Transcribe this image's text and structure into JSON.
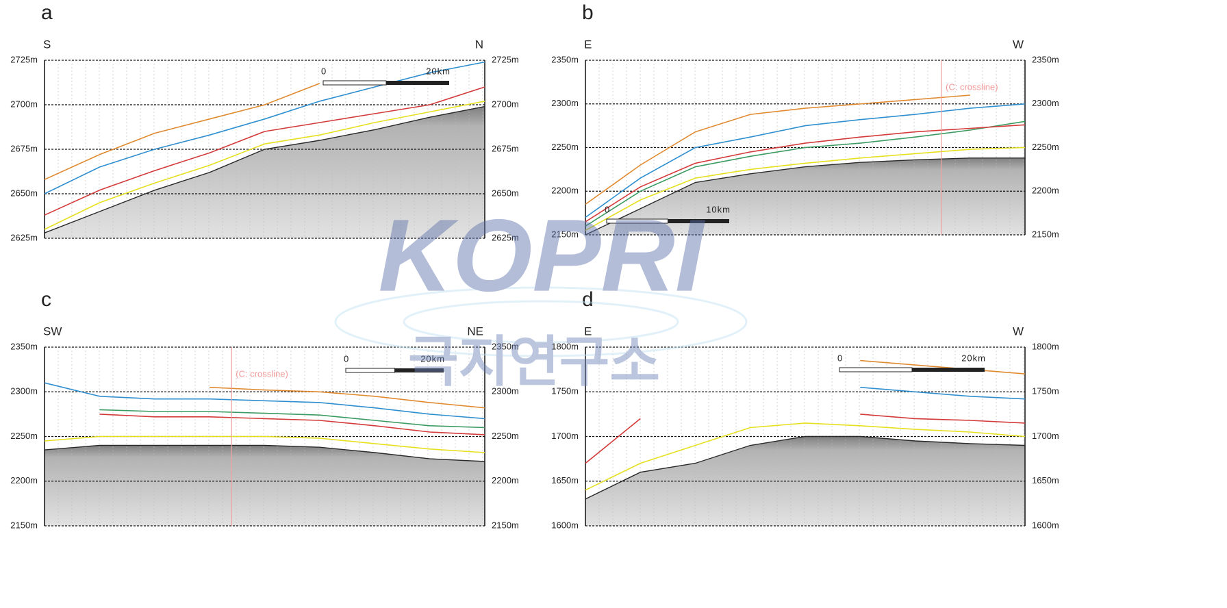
{
  "panels": [
    {
      "label": "a",
      "left": "S",
      "right": "N",
      "ylim": [
        2625,
        2725
      ],
      "yticks": [
        {
          "value": 2625,
          "label": "2625m"
        },
        {
          "value": 2650,
          "label": "2650m"
        },
        {
          "value": 2675,
          "label": "2675m"
        },
        {
          "value": 2700,
          "label": "2700m"
        },
        {
          "value": 2725,
          "label": "2725m"
        }
      ],
      "scale": [
        "0",
        "20km"
      ],
      "horizons": [
        {
          "color": "#2a2a2a",
          "depths": [
            2628,
            2640,
            2652,
            2662,
            2675,
            2680,
            2686,
            2693,
            2699
          ]
        },
        {
          "color": "#e6e020",
          "depths": [
            2630,
            2645,
            2656,
            2666,
            2678,
            2683,
            2690,
            2696,
            2702
          ]
        },
        {
          "color": "#d43a3a",
          "depths": [
            2638,
            2652,
            2663,
            2673,
            2685,
            2690,
            2695,
            2700,
            2710
          ]
        },
        {
          "color": "#2f8fd0",
          "depths": [
            2650,
            2665,
            2675,
            2683,
            2692,
            2702,
            2710,
            2718,
            2724
          ]
        },
        {
          "color": "#e08a30",
          "depths": [
            2658,
            2672,
            2684,
            2692,
            2700,
            2712,
            null,
            null,
            null
          ]
        }
      ]
    },
    {
      "label": "b",
      "left": "E",
      "right": "W",
      "ylim": [
        2150,
        2350
      ],
      "yticks": [
        {
          "value": 2150,
          "label": "2150m"
        },
        {
          "value": 2200,
          "label": "2200m"
        },
        {
          "value": 2250,
          "label": "2250m"
        },
        {
          "value": 2300,
          "label": "2300m"
        },
        {
          "value": 2350,
          "label": "2350m"
        }
      ],
      "scale": [
        "0",
        "10km"
      ],
      "crossline": "(C: crossline)",
      "horizons": [
        {
          "color": "#2a2a2a",
          "depths": [
            2150,
            2180,
            2210,
            2220,
            2228,
            2233,
            2236,
            2238,
            2238
          ]
        },
        {
          "color": "#e6e020",
          "depths": [
            2155,
            2190,
            2215,
            2225,
            2232,
            2238,
            2243,
            2248,
            2250
          ]
        },
        {
          "color": "#3a9a60",
          "depths": [
            2160,
            2200,
            2228,
            2240,
            2250,
            2255,
            2262,
            2270,
            2280
          ]
        },
        {
          "color": "#d43a3a",
          "depths": [
            2165,
            2205,
            2232,
            2245,
            2255,
            2262,
            2268,
            2272,
            2276
          ]
        },
        {
          "color": "#2f8fd0",
          "depths": [
            2170,
            2215,
            2250,
            2262,
            2275,
            2282,
            2288,
            2295,
            2300
          ]
        },
        {
          "color": "#e08a30",
          "depths": [
            2185,
            2230,
            2268,
            2288,
            2295,
            2300,
            2305,
            2310,
            null
          ]
        }
      ]
    },
    {
      "label": "c",
      "left": "SW",
      "right": "NE",
      "ylim": [
        2150,
        2350
      ],
      "yticks": [
        {
          "value": 2150,
          "label": "2150m"
        },
        {
          "value": 2200,
          "label": "2200m"
        },
        {
          "value": 2250,
          "label": "2250m"
        },
        {
          "value": 2300,
          "label": "2300m"
        },
        {
          "value": 2350,
          "label": "2350m"
        }
      ],
      "scale": [
        "0",
        "20km"
      ],
      "crossline": "(C: crossline)",
      "horizons": [
        {
          "color": "#2a2a2a",
          "depths": [
            2235,
            2240,
            2240,
            2240,
            2240,
            2238,
            2232,
            2225,
            2222
          ]
        },
        {
          "color": "#e6e020",
          "depths": [
            2245,
            2250,
            2250,
            2250,
            2250,
            2248,
            2242,
            2236,
            2232
          ]
        },
        {
          "color": "#d43a3a",
          "depths": [
            null,
            2275,
            2272,
            2272,
            2270,
            2268,
            2262,
            2255,
            2252
          ]
        },
        {
          "color": "#3a9a60",
          "depths": [
            null,
            2280,
            2278,
            2278,
            2276,
            2274,
            2268,
            2262,
            2260
          ]
        },
        {
          "color": "#2f8fd0",
          "depths": [
            2310,
            2295,
            2292,
            2292,
            2290,
            2288,
            2282,
            2275,
            2270
          ]
        },
        {
          "color": "#e08a30",
          "depths": [
            null,
            null,
            null,
            2305,
            2302,
            2300,
            2295,
            2288,
            2282
          ]
        }
      ]
    },
    {
      "label": "d",
      "left": "E",
      "right": "W",
      "ylim": [
        1600,
        1800
      ],
      "yticks": [
        {
          "value": 1600,
          "label": "1600m"
        },
        {
          "value": 1650,
          "label": "1650m"
        },
        {
          "value": 1700,
          "label": "1700m"
        },
        {
          "value": 1750,
          "label": "1750m"
        },
        {
          "value": 1800,
          "label": "1800m"
        }
      ],
      "scale": [
        "0",
        "20km"
      ],
      "horizons": [
        {
          "color": "#2a2a2a",
          "depths": [
            1630,
            1660,
            1670,
            1690,
            1700,
            1700,
            1695,
            1692,
            1690
          ]
        },
        {
          "color": "#e6e020",
          "depths": [
            1640,
            1670,
            1690,
            1710,
            1715,
            1712,
            1708,
            1705,
            1700
          ]
        },
        {
          "color": "#d43a3a",
          "depths": [
            1670,
            1720,
            null,
            null,
            null,
            1725,
            1720,
            1718,
            1715
          ]
        },
        {
          "color": "#2f8fd0",
          "depths": [
            null,
            null,
            null,
            null,
            null,
            1755,
            1750,
            1745,
            1742
          ]
        },
        {
          "color": "#e08a30",
          "depths": [
            null,
            null,
            null,
            null,
            null,
            1785,
            1780,
            1775,
            1770
          ]
        }
      ]
    }
  ],
  "watermark": {
    "logo": "KOPRI",
    "name": "극지연구소"
  }
}
